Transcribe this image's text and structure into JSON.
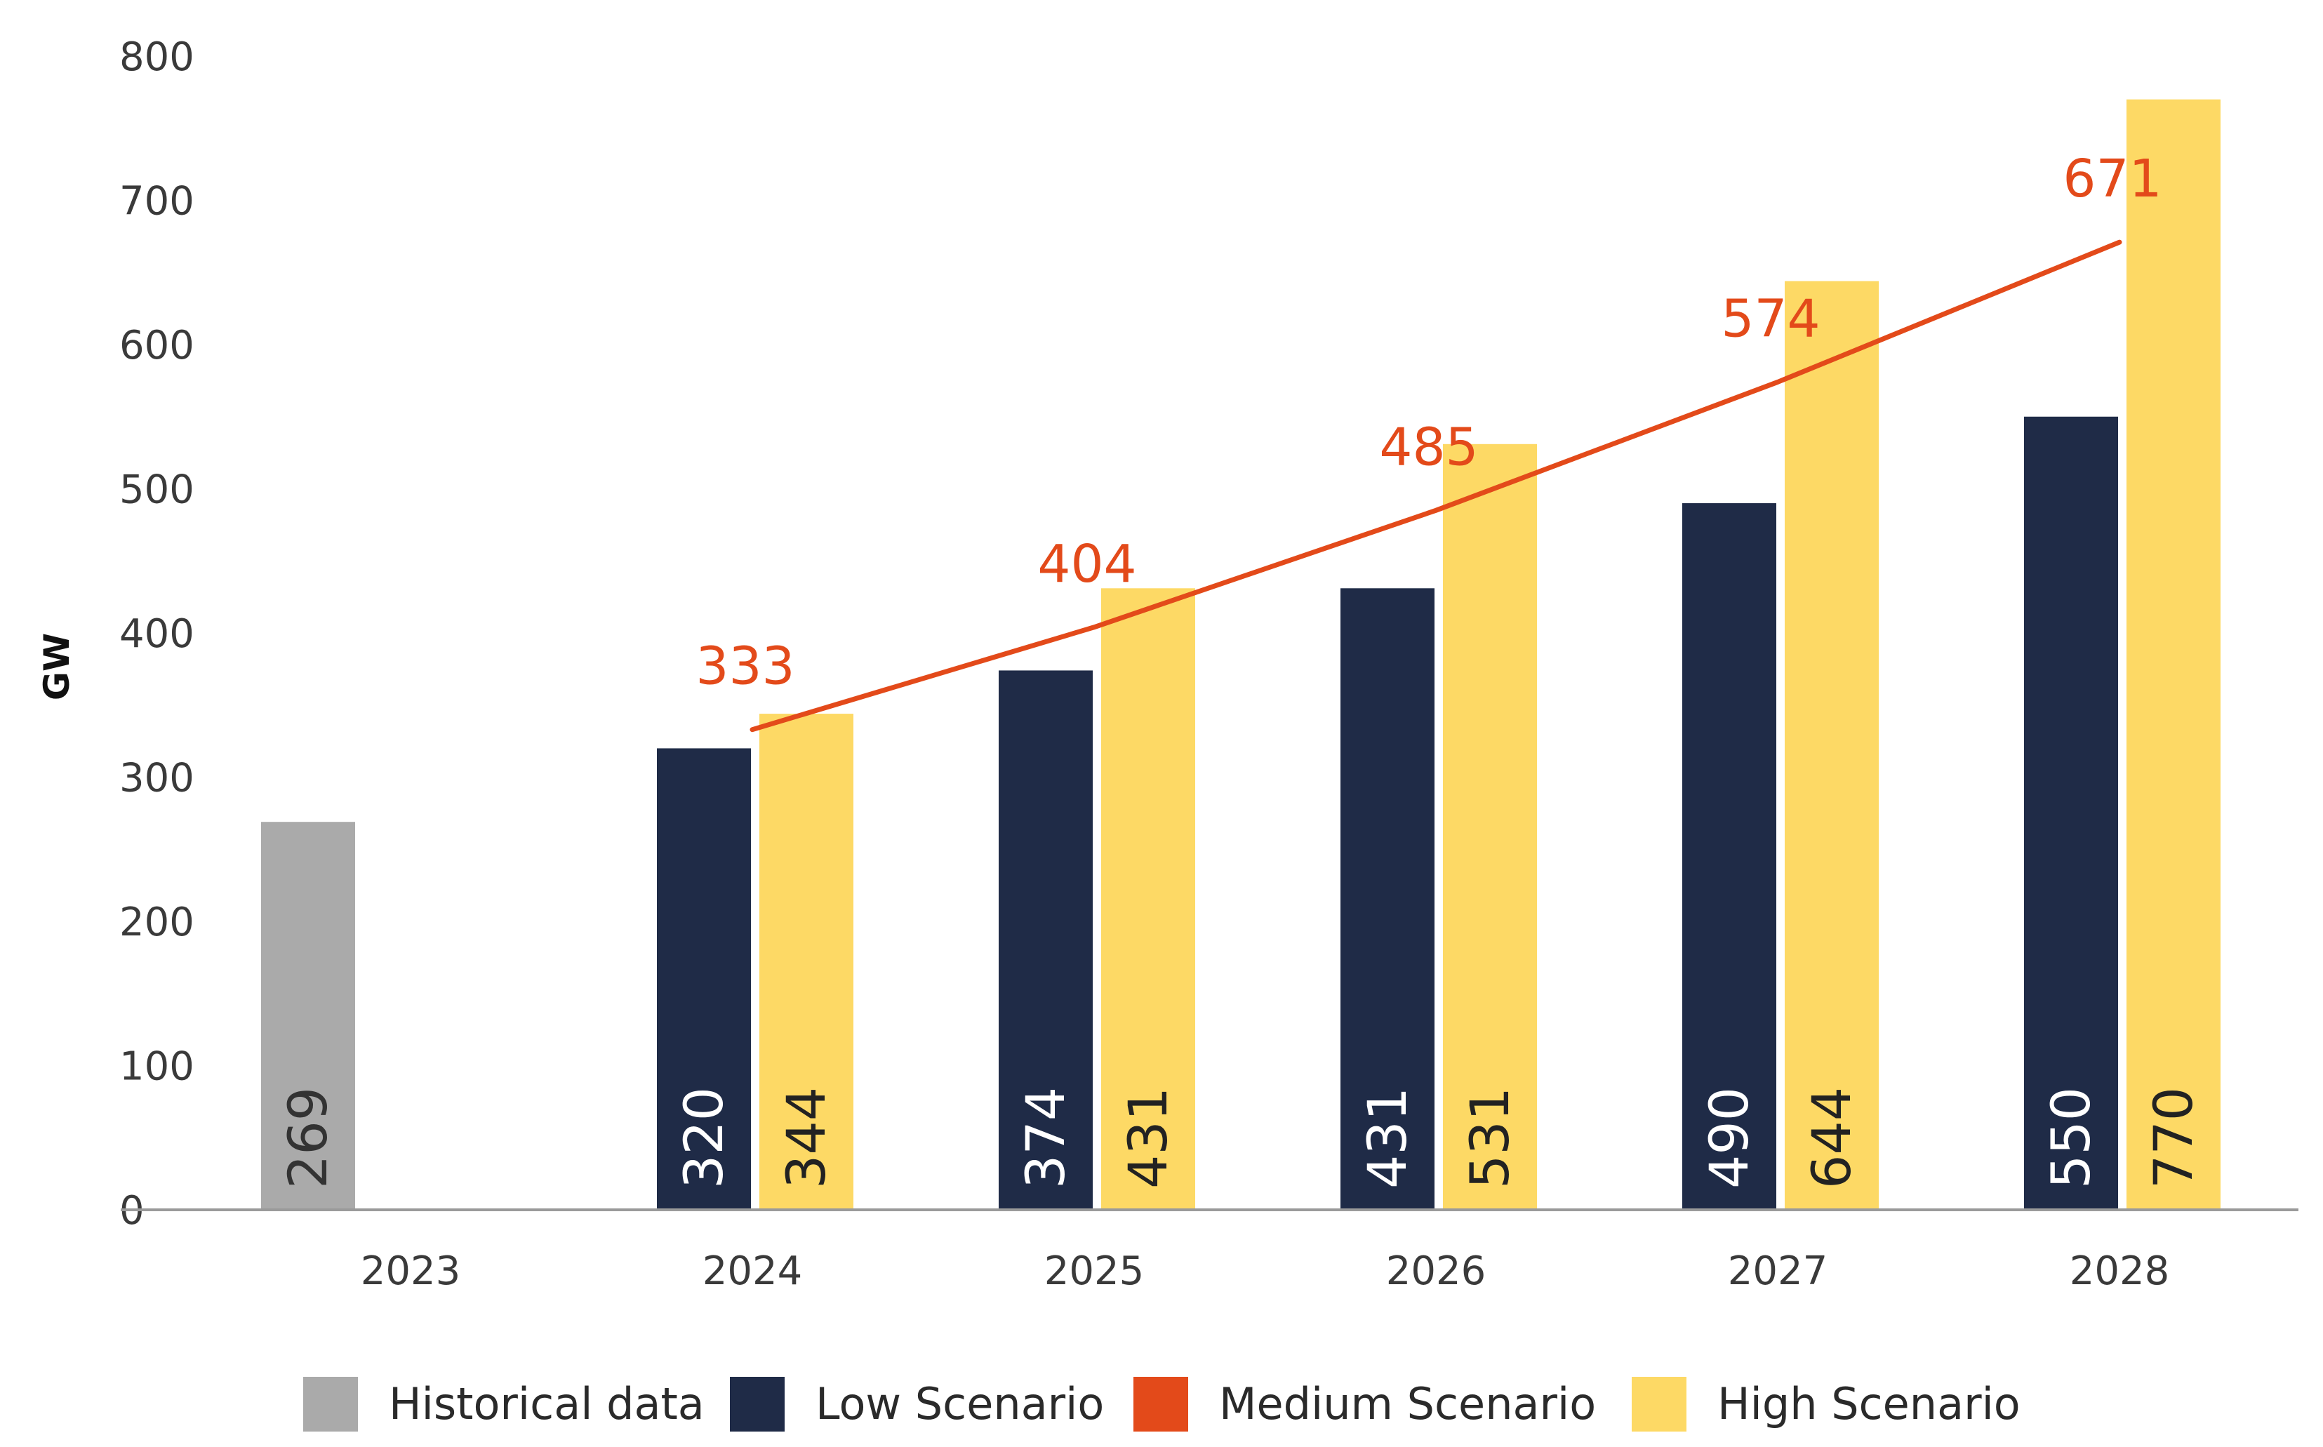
{
  "chart_data": {
    "type": "bar",
    "title": "",
    "xlabel": "",
    "ylabel": "GW",
    "ylim": [
      0,
      800
    ],
    "yticks": [
      "0",
      "100",
      "200",
      "300",
      "400",
      "500",
      "600",
      "700",
      "800"
    ],
    "categories": [
      "2023",
      "2024",
      "2025",
      "2026",
      "2027",
      "2028"
    ],
    "series": [
      {
        "name": "Historical data",
        "kind": "bar",
        "color": "#aaaaaa",
        "label_color": "#333333",
        "values": [
          269,
          null,
          null,
          null,
          null,
          null
        ],
        "labels": [
          "269",
          "",
          "",
          "",
          "",
          ""
        ]
      },
      {
        "name": "Low Scenario",
        "kind": "bar",
        "color": "#1f2b47",
        "label_color": "#ffffff",
        "values": [
          null,
          320,
          374,
          431,
          490,
          550
        ],
        "labels": [
          "",
          "320",
          "374",
          "431",
          "490",
          "550"
        ]
      },
      {
        "name": "Medium Scenario",
        "kind": "line",
        "color": "#e34a1a",
        "values": [
          null,
          333,
          404,
          485,
          574,
          671
        ],
        "labels": [
          "",
          "333",
          "404",
          "485",
          "574",
          "671"
        ]
      },
      {
        "name": "High Scenario",
        "kind": "bar",
        "color": "#fdd965",
        "label_color": "#222222",
        "values": [
          null,
          344,
          431,
          531,
          644,
          770
        ],
        "labels": [
          "",
          "344",
          "431",
          "531",
          "644",
          "770"
        ]
      }
    ],
    "legend": {
      "position": "bottom",
      "items": [
        {
          "label": "Historical data",
          "color": "#aaaaaa"
        },
        {
          "label": "Low Scenario",
          "color": "#1f2b47"
        },
        {
          "label": "Medium Scenario",
          "color": "#e34a1a"
        },
        {
          "label": "High Scenario",
          "color": "#fdd965"
        }
      ]
    }
  }
}
